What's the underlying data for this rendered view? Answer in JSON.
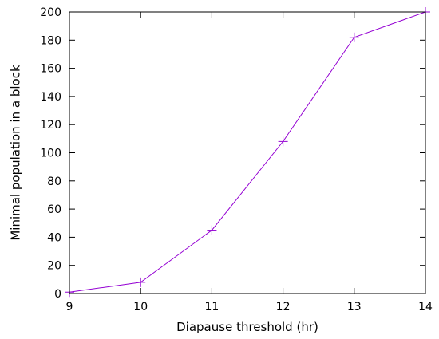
{
  "chart_data": {
    "type": "line",
    "title": "",
    "xlabel": "Diapause threshold (hr)",
    "ylabel": "Minimal population in a block",
    "xlim": [
      9,
      14
    ],
    "ylim": [
      0,
      200
    ],
    "x_ticks": [
      9,
      10,
      11,
      12,
      13,
      14
    ],
    "y_ticks": [
      0,
      20,
      40,
      60,
      80,
      100,
      120,
      140,
      160,
      180,
      200
    ],
    "grid": false,
    "legend": "none",
    "series": [
      {
        "x": [
          9,
          10,
          11,
          12,
          13,
          14
        ],
        "values": [
          1,
          8,
          45,
          108,
          182,
          200
        ],
        "color": "#9400d3",
        "marker": "plus"
      }
    ]
  }
}
